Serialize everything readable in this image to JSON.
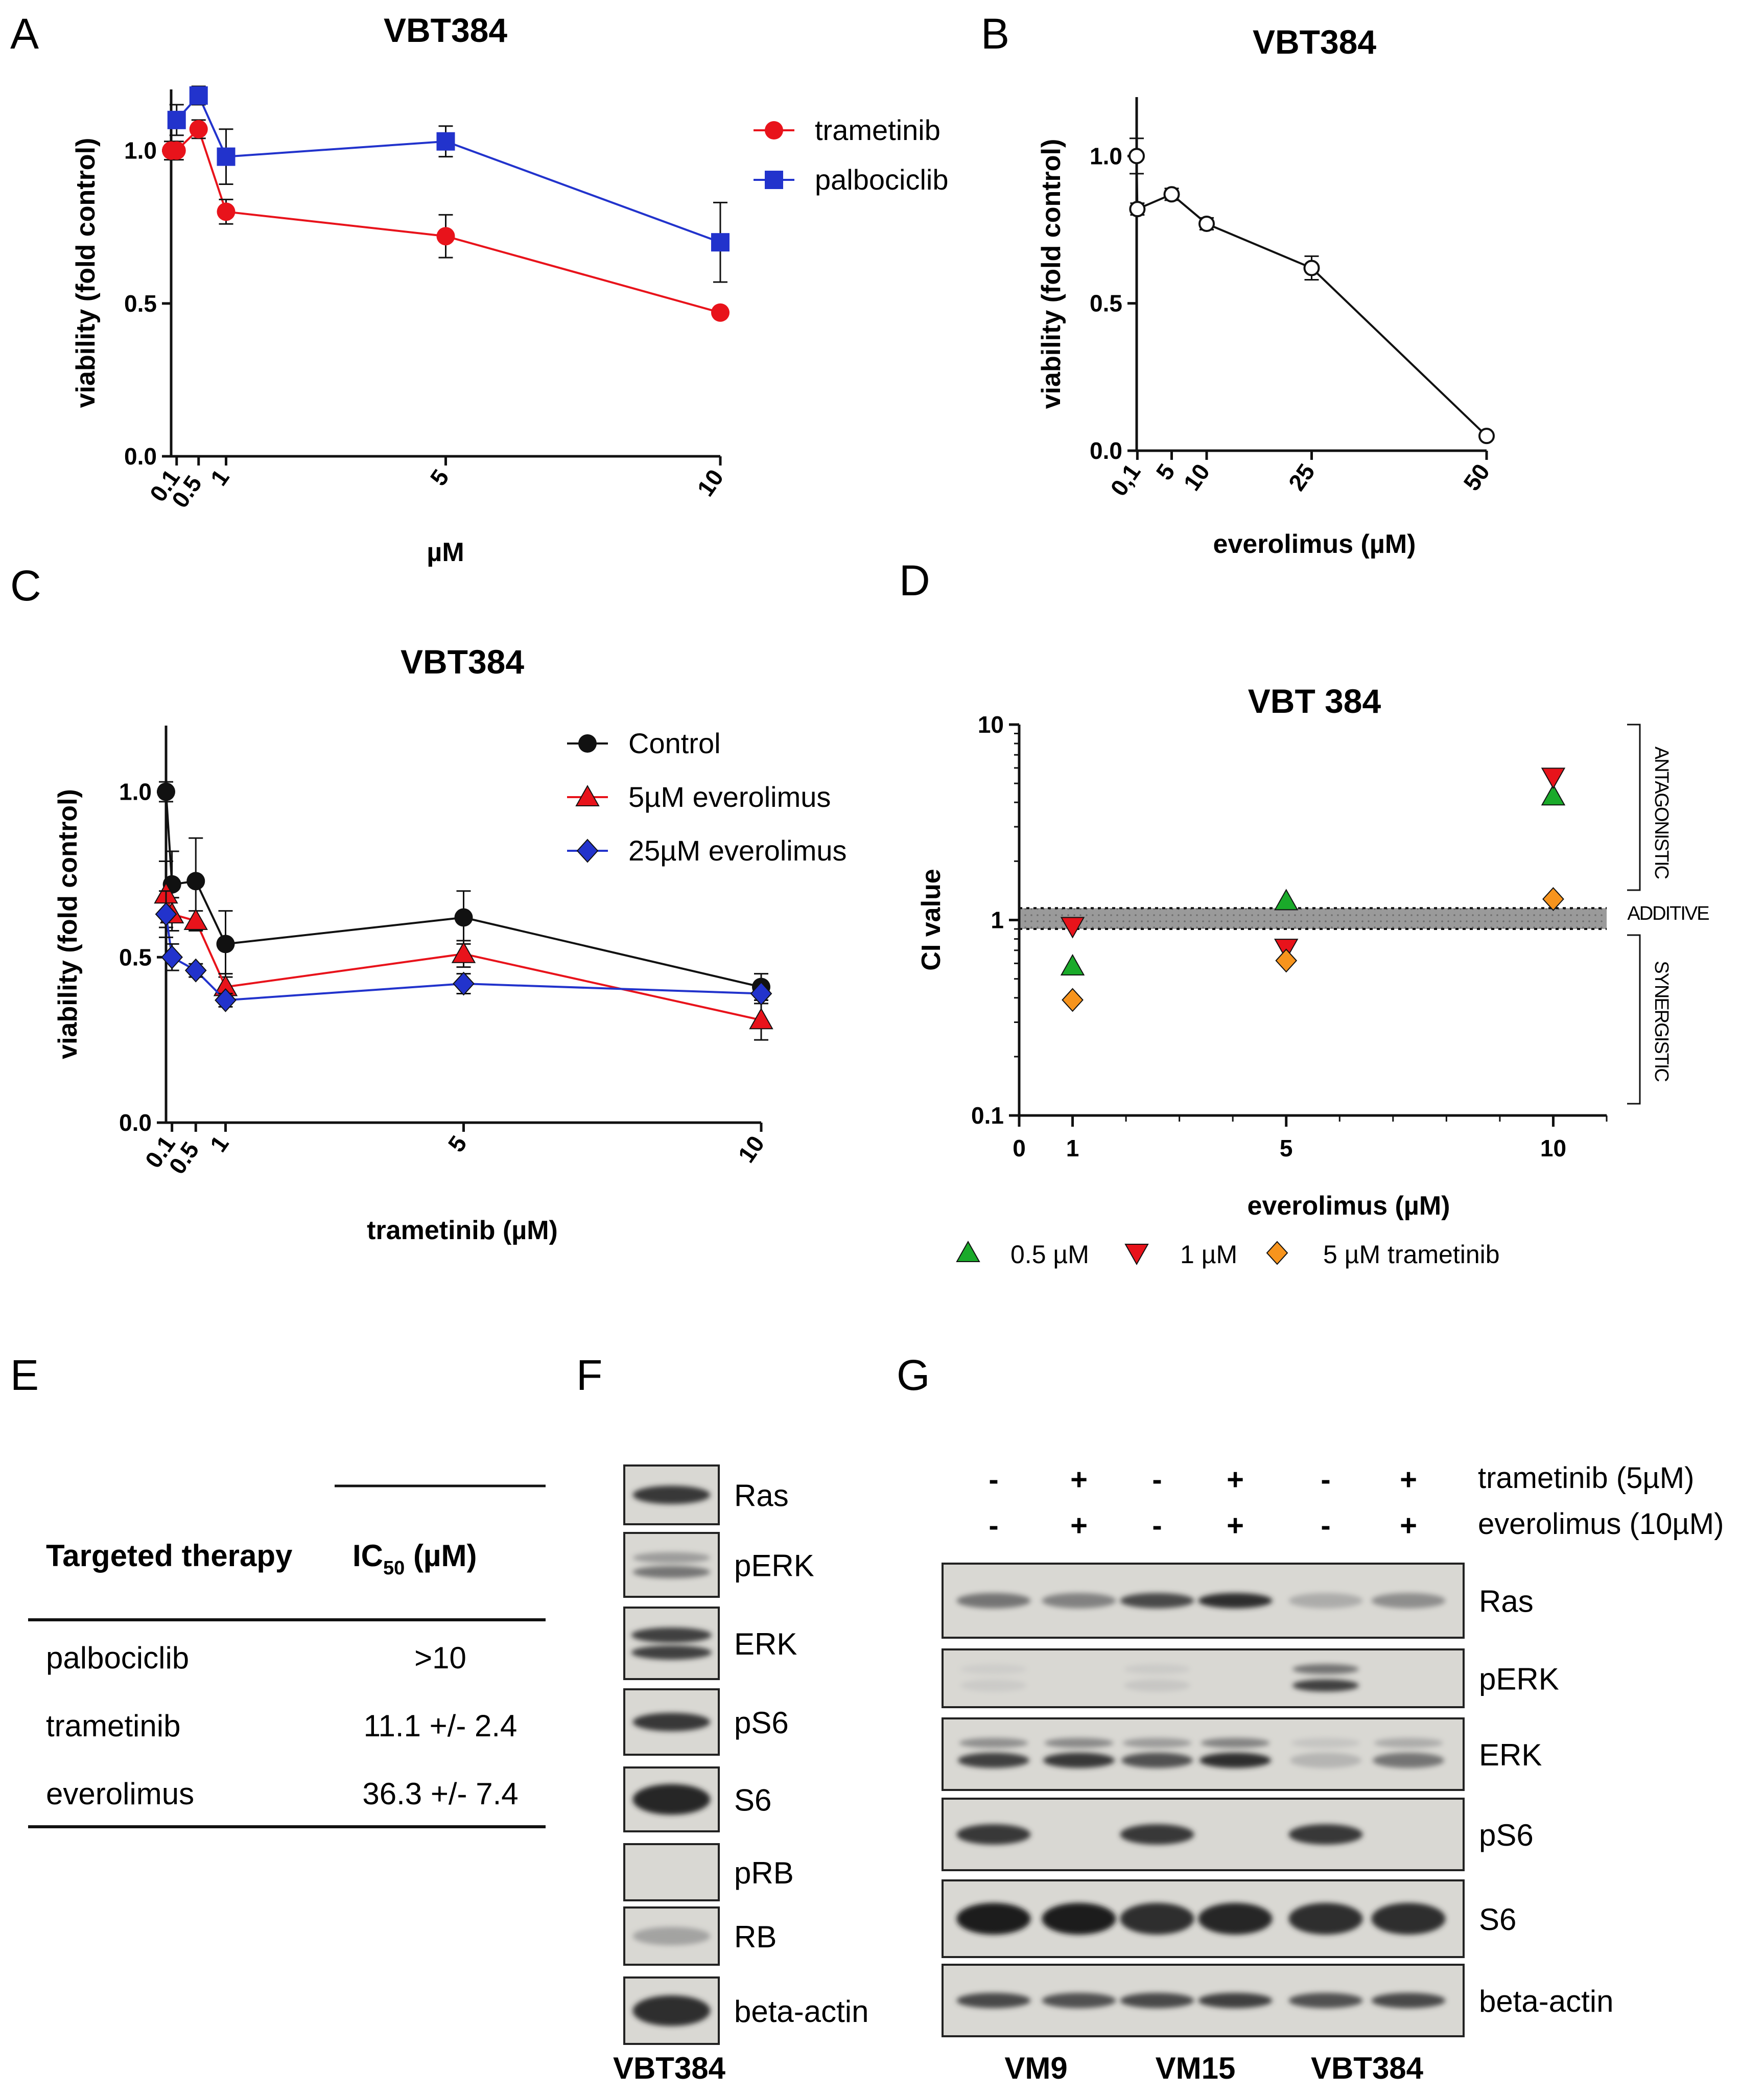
{
  "colors": {
    "red": "#e8131b",
    "blue": "#2233cc",
    "black": "#111111",
    "green": "#1aaa2a",
    "orange": "#f7941d",
    "gray": "#9a9a9a"
  },
  "panels": {
    "A": "A",
    "B": "B",
    "C": "C",
    "D": "D",
    "E": "E",
    "F": "F",
    "G": "G"
  },
  "chart_data": [
    {
      "panel": "A",
      "type": "line",
      "title": "VBT384",
      "xlabel": "µM",
      "ylabel": "viability (fold control)",
      "xticks": [
        0.1,
        0.5,
        1,
        5,
        10
      ],
      "xtick_labels": [
        "0.1",
        "0.5",
        "1",
        "5",
        "10"
      ],
      "yticks": [
        0,
        0.5,
        1
      ],
      "ytick_labels": [
        "0.0",
        "0.5",
        "1.0"
      ],
      "xlim": [
        0,
        10
      ],
      "ylim": [
        0,
        1.2
      ],
      "legend": "top-right",
      "series": [
        {
          "name": "trametinib",
          "color": "#e8131b",
          "marker": "circle",
          "x": [
            0,
            0.1,
            0.5,
            1,
            5,
            10
          ],
          "y": [
            1.0,
            1.0,
            1.07,
            0.8,
            0.72,
            0.47
          ],
          "err": [
            0.03,
            0.03,
            0.03,
            0.04,
            0.07,
            0.01
          ]
        },
        {
          "name": "palbociclib",
          "color": "#2233cc",
          "marker": "square",
          "x": [
            0.1,
            0.5,
            1,
            5,
            10
          ],
          "y": [
            1.1,
            1.18,
            0.98,
            1.03,
            0.7
          ],
          "err": [
            0.05,
            0.03,
            0.09,
            0.05,
            0.13
          ]
        }
      ]
    },
    {
      "panel": "B",
      "type": "line",
      "title": "VBT384",
      "xlabel": "everolimus (µM)",
      "ylabel": "viability (fold control)",
      "xticks": [
        0.1,
        5,
        10,
        25,
        50
      ],
      "xtick_labels": [
        "0,1",
        "5",
        "10",
        "25",
        "50"
      ],
      "yticks": [
        0,
        0.5,
        1
      ],
      "ytick_labels": [
        "0.0",
        "0.5",
        "1.0"
      ],
      "xlim": [
        0,
        50
      ],
      "ylim": [
        0,
        1.2
      ],
      "series": [
        {
          "name": "everolimus",
          "color": "#111111",
          "marker": "open-circle",
          "x": [
            0,
            0.1,
            5,
            10,
            25,
            50
          ],
          "y": [
            1.0,
            0.82,
            0.87,
            0.77,
            0.62,
            0.05
          ],
          "err": [
            0.06,
            0.02,
            0.02,
            0.02,
            0.04,
            0.0
          ]
        }
      ]
    },
    {
      "panel": "C",
      "type": "line",
      "title": "VBT384",
      "xlabel": "trametinib (µM)",
      "ylabel": "viability (fold control)",
      "xticks": [
        0.1,
        0.5,
        1,
        5,
        10
      ],
      "xtick_labels": [
        "0.1",
        "0.5",
        "1",
        "5",
        "10"
      ],
      "yticks": [
        0,
        0.5,
        1
      ],
      "ytick_labels": [
        "0.0",
        "0.5",
        "1.0"
      ],
      "xlim": [
        0,
        10
      ],
      "ylim": [
        0,
        1.2
      ],
      "legend": "top-right",
      "series": [
        {
          "name": "Control",
          "color": "#111111",
          "marker": "circle",
          "x": [
            0,
            0.1,
            0.5,
            1,
            5,
            10
          ],
          "y": [
            1.0,
            0.72,
            0.73,
            0.54,
            0.62,
            0.41
          ],
          "err": [
            0.03,
            0.1,
            0.13,
            0.1,
            0.08,
            0.04
          ]
        },
        {
          "name": "5µM everolimus",
          "color": "#e8131b",
          "marker": "triangle",
          "x": [
            0,
            0.1,
            0.5,
            1,
            5,
            10
          ],
          "y": [
            0.69,
            0.63,
            0.61,
            0.41,
            0.51,
            0.31
          ],
          "err": [
            0.1,
            0.05,
            0.03,
            0.04,
            0.04,
            0.06
          ]
        },
        {
          "name": "25µM everolimus",
          "color": "#2233cc",
          "marker": "diamond",
          "x": [
            0,
            0.1,
            0.5,
            1,
            5,
            10
          ],
          "y": [
            0.63,
            0.5,
            0.46,
            0.37,
            0.42,
            0.39
          ],
          "err": [
            0.07,
            0.04,
            0.02,
            0.02,
            0.03,
            0.03
          ]
        }
      ]
    },
    {
      "panel": "D",
      "type": "scatter",
      "title": "VBT 384",
      "xlabel": "everolimus (µM)",
      "ylabel": "CI value",
      "yscale": "log",
      "ylim": [
        0.1,
        10
      ],
      "xlim": [
        0,
        11
      ],
      "xticks": [
        0,
        1,
        5,
        10
      ],
      "xtick_labels": [
        "0",
        "1",
        "5",
        "10"
      ],
      "yticks": [
        0.1,
        1,
        10
      ],
      "ytick_labels": [
        "0.1",
        "1",
        "10"
      ],
      "additive_band": [
        0.9,
        1.15
      ],
      "zones": {
        "antagonistic": "ANTAGONISTIC",
        "additive": "ADDITIVE",
        "synergistic": "SYNERGISTIC"
      },
      "series": [
        {
          "name": "0.5 µM",
          "color": "#1aaa2a",
          "marker": "triangle",
          "x": [
            1,
            5,
            10
          ],
          "y": [
            0.58,
            1.25,
            4.3
          ]
        },
        {
          "name": "1 µM",
          "color": "#e8131b",
          "marker": "triangle-down",
          "x": [
            1,
            5,
            10
          ],
          "y": [
            0.93,
            0.72,
            5.4
          ]
        },
        {
          "name": "5 µM trametinib",
          "color": "#f7941d",
          "marker": "diamond",
          "x": [
            1,
            5,
            10
          ],
          "y": [
            0.39,
            0.62,
            1.28
          ]
        }
      ],
      "legend": "bottom"
    }
  ],
  "table": {
    "col1_header": "Targeted therapy",
    "col2_header_main": "IC",
    "col2_header_sub": "50",
    "col2_header_tail": " (µM)",
    "rows": [
      {
        "drug": "palbociclib",
        "value": ">10"
      },
      {
        "drug": "trametinib",
        "value": "11.1 +/- 2.4"
      },
      {
        "drug": "everolimus",
        "value": "36.3 +/- 7.4"
      }
    ]
  },
  "blotF": {
    "labels": [
      "Ras",
      "pERK",
      "ERK",
      "pS6",
      "S6",
      "pRB",
      "RB",
      "beta-actin"
    ],
    "intensity": [
      0.85,
      0.55,
      0.8,
      0.85,
      0.95,
      0.0,
      0.35,
      0.9
    ],
    "cell_line": "VBT384"
  },
  "blotG": {
    "trametinib_label": "trametinib (5µM)",
    "everolimus_label": "everolimus (10µM)",
    "trametinib_signs": [
      "-",
      "+",
      "-",
      "+",
      "-",
      "+"
    ],
    "everolimus_signs": [
      "-",
      "+",
      "-",
      "+",
      "-",
      "+"
    ],
    "labels": [
      "Ras",
      "pERK",
      "ERK",
      "pS6",
      "S6",
      "beta-actin"
    ],
    "lanes": [
      "VM9",
      "VM15",
      "VBT384"
    ],
    "intensity": [
      [
        0.55,
        0.5,
        0.75,
        0.9,
        0.3,
        0.45
      ],
      [
        0.08,
        0.0,
        0.12,
        0.0,
        0.8,
        0.0
      ],
      [
        0.8,
        0.85,
        0.7,
        0.9,
        0.25,
        0.55
      ],
      [
        0.85,
        0.0,
        0.85,
        0.0,
        0.85,
        0.0
      ],
      [
        1.0,
        1.0,
        0.9,
        0.95,
        0.9,
        0.9
      ],
      [
        0.75,
        0.7,
        0.75,
        0.8,
        0.7,
        0.75
      ]
    ]
  }
}
